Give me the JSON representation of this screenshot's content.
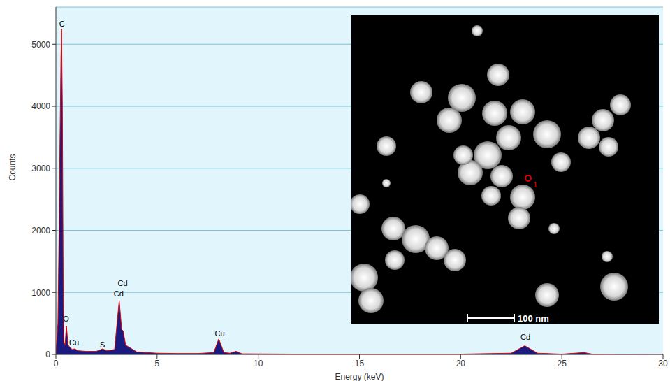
{
  "chart_data": {
    "type": "area",
    "x_label": "Energy (keV)",
    "y_label": "Counts",
    "x": [
      0.0,
      0.1,
      0.15,
      0.2,
      0.25,
      0.28,
      0.32,
      0.36,
      0.4,
      0.45,
      0.52,
      0.6,
      0.8,
      0.93,
      1.1,
      1.5,
      2.0,
      2.31,
      2.5,
      2.9,
      3.13,
      3.25,
      3.32,
      3.45,
      3.7,
      4.0,
      5.0,
      6.0,
      7.0,
      7.8,
      8.05,
      8.3,
      8.6,
      8.9,
      9.2,
      12.0,
      15.0,
      20.0,
      22.5,
      23.17,
      23.8,
      25.0,
      26.1,
      26.5,
      30.0
    ],
    "values": [
      0,
      500,
      1800,
      3400,
      4800,
      5250,
      4000,
      1100,
      200,
      150,
      460,
      150,
      80,
      90,
      60,
      50,
      50,
      90,
      60,
      80,
      870,
      400,
      380,
      150,
      100,
      40,
      20,
      15,
      15,
      30,
      250,
      30,
      20,
      50,
      10,
      5,
      5,
      5,
      20,
      140,
      20,
      5,
      30,
      5,
      0
    ],
    "color": "#1a1a80",
    "xlim": [
      0,
      30
    ],
    "xticks": [
      0,
      5,
      10,
      15,
      20,
      25,
      30
    ],
    "ylim": [
      0,
      5600
    ],
    "yticks": [
      0,
      1000,
      2000,
      3000,
      4000,
      5000
    ],
    "grid": true,
    "annotations": [
      {
        "text": "C",
        "x": 0.3,
        "y": 5330
      },
      {
        "text": "O",
        "x": 0.5,
        "y": 575
      },
      {
        "text": "Cu",
        "x": 0.9,
        "y": 190
      },
      {
        "text": "S",
        "x": 2.3,
        "y": 160
      },
      {
        "text": "Cd",
        "x": 3.1,
        "y": 980
      },
      {
        "text": "Cd",
        "x": 3.3,
        "y": 1150
      },
      {
        "text": "Cu",
        "x": 8.1,
        "y": 340
      },
      {
        "text": "Cd",
        "x": 23.2,
        "y": 280
      }
    ],
    "inset": {
      "scale_bar": "100 nm",
      "marker": "1"
    }
  }
}
